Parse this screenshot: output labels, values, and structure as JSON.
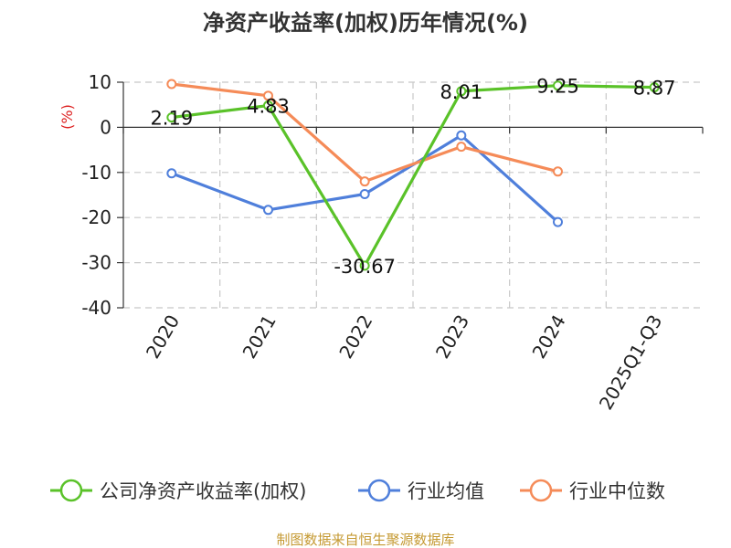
{
  "chart_data": {
    "type": "line",
    "title": "净资产收益率(加权)历年情况(%)",
    "ylabel": "(%)",
    "xlabel": "",
    "categories": [
      "2020",
      "2021",
      "2022",
      "2023",
      "2024",
      "2025Q1-Q3"
    ],
    "ylim": [
      -40,
      10
    ],
    "yticks": [
      10,
      0,
      -10,
      -20,
      -30,
      -40
    ],
    "grid": true,
    "legend_position": "bottom",
    "series": [
      {
        "name": "公司净资产收益率(加权)",
        "color": "#5ac229",
        "values": [
          2.19,
          4.83,
          -30.67,
          8.01,
          9.25,
          8.87
        ],
        "labels": [
          "2.19",
          "4.83",
          "-30.67",
          "8.01",
          "9.25",
          "8.87"
        ]
      },
      {
        "name": "行业均值",
        "color": "#4f7fdb",
        "values": [
          -10.2,
          -18.3,
          -14.8,
          -1.8,
          -21.0,
          null
        ]
      },
      {
        "name": "行业中位数",
        "color": "#f58b58",
        "values": [
          9.6,
          7.0,
          -12.0,
          -4.3,
          -9.8,
          null
        ]
      }
    ],
    "source": "制图数据来自恒生聚源数据库",
    "unit_color": "#dd2222",
    "source_color": "#c59a33"
  }
}
